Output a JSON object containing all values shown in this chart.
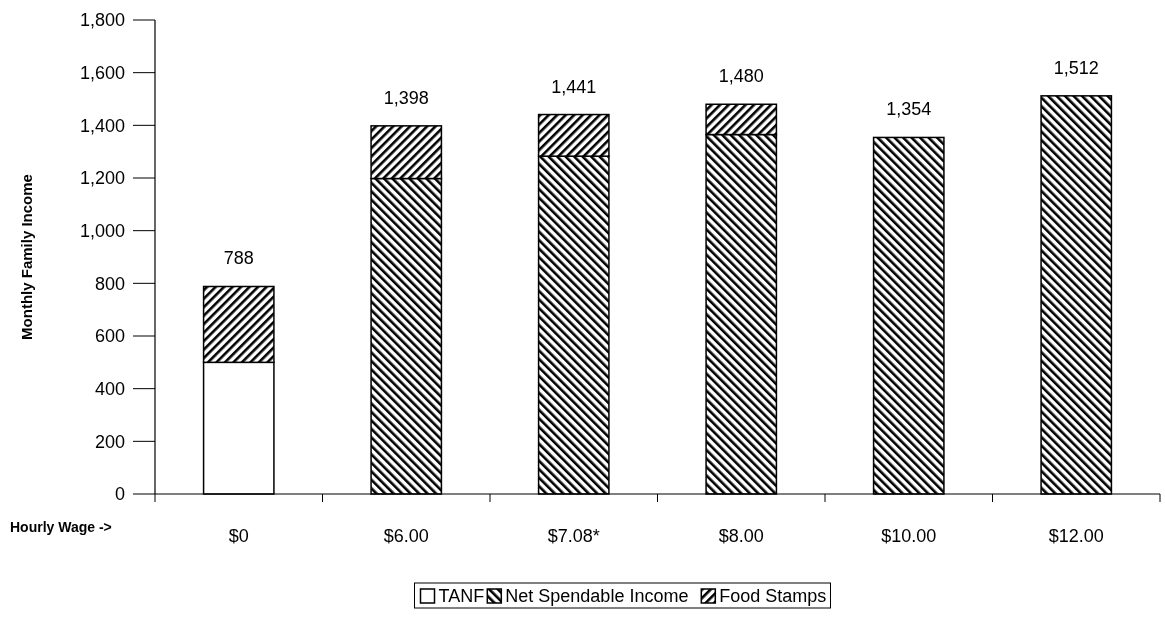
{
  "chart_data": {
    "type": "bar",
    "stacked": true,
    "xlabel": "Hourly Wage ->",
    "ylabel": "Monthly Family Income",
    "categories": [
      "$0",
      "$6.00",
      "$7.08*",
      "$8.00",
      "$10.00",
      "$12.00"
    ],
    "series": [
      {
        "name": "TANF",
        "color": "#ffffff",
        "values": [
          500,
          0,
          0,
          0,
          0,
          0
        ]
      },
      {
        "name": "Net Spendable Income",
        "color": "#000000",
        "values": [
          0,
          1198,
          1283,
          1365,
          1354,
          1512
        ]
      },
      {
        "name": "Food Stamps",
        "color": "#000000",
        "values": [
          288,
          200,
          158,
          115,
          0,
          0
        ]
      }
    ],
    "totals": [
      "788",
      "1,398",
      "1,441",
      "1,480",
      "1,354",
      "1,512"
    ],
    "ylim": [
      0,
      1800
    ],
    "yticks": [
      0,
      200,
      400,
      600,
      800,
      {
        "value": 1000,
        "label": "1,000"
      },
      {
        "value": 1200,
        "label": "1,200"
      },
      {
        "value": 1400,
        "label": "1,400"
      },
      {
        "value": 1600,
        "label": "1,600"
      },
      {
        "value": 1800,
        "label": "1,800"
      }
    ],
    "grid": false,
    "legend": "bottom"
  }
}
